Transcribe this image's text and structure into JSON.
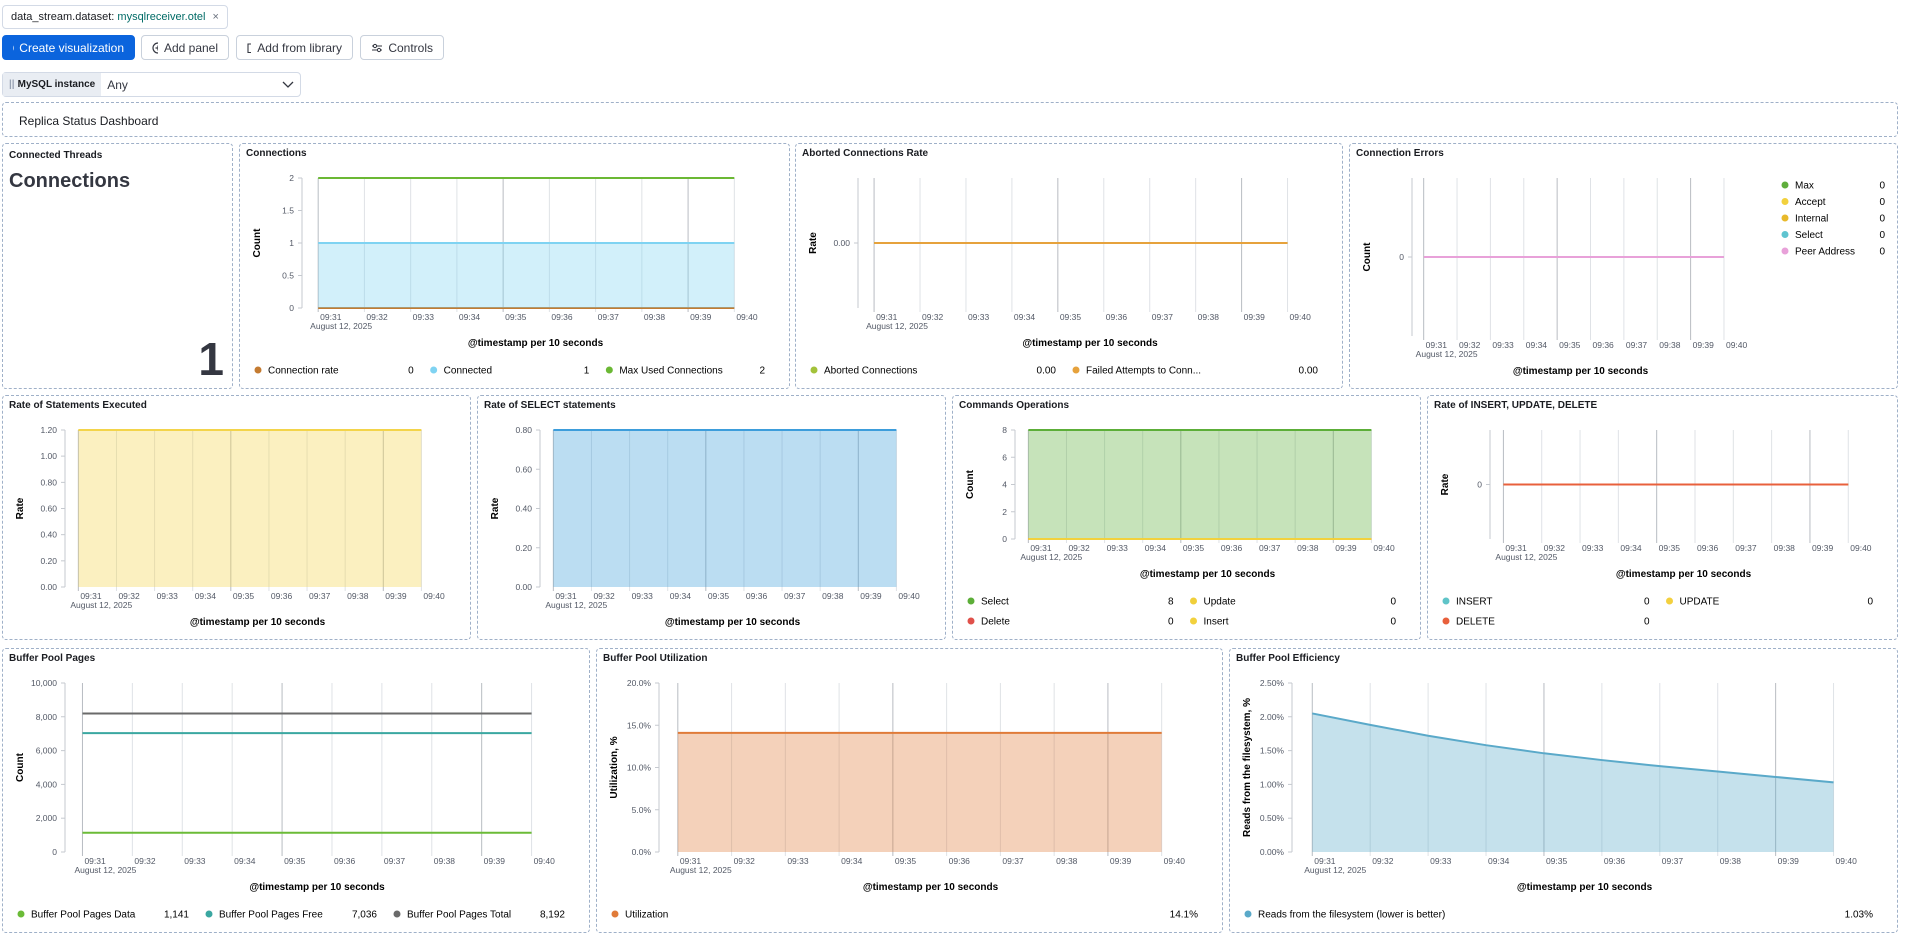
{
  "toolbar": {
    "filter_field": "data_stream.dataset:",
    "filter_value": "mysqlreceiver.otel",
    "buttons": [
      "Create visualization",
      "Add panel",
      "Add from library",
      "Controls"
    ]
  },
  "control": {
    "label": "MySQL instance",
    "value": "Any"
  },
  "dashboard_title": "Replica Status Dashboard",
  "metric_panel": {
    "title": "Connected Threads",
    "heading": "Connections",
    "value": "1"
  },
  "chart_data": [
    {
      "type": "line",
      "title": "Connections",
      "y_label": "Count",
      "x_label": "@timestamp per 10 seconds",
      "x_sublabel": "August 12, 2025",
      "x": [
        "09:31",
        "09:32",
        "09:33",
        "09:34",
        "09:35",
        "09:36",
        "09:37",
        "09:38",
        "09:39",
        "09:40"
      ],
      "ylim": [
        0,
        2
      ],
      "yticks": [
        0,
        0.5,
        1,
        1.5,
        2
      ],
      "legend": "bottom",
      "series": [
        {
          "name": "Connection rate",
          "color": "#c47b31",
          "values": [
            0,
            0,
            0,
            0,
            0,
            0,
            0,
            0,
            0,
            0
          ],
          "legend_value": "0"
        },
        {
          "name": "Connected",
          "color": "#7fd3f2",
          "area": true,
          "values": [
            1,
            1,
            1,
            1,
            1,
            1,
            1,
            1,
            1,
            1
          ],
          "legend_value": "1"
        },
        {
          "name": "Max Used Connections",
          "color": "#6bb834",
          "values": [
            2,
            2,
            2,
            2,
            2,
            2,
            2,
            2,
            2,
            2
          ],
          "legend_value": "2"
        }
      ]
    },
    {
      "type": "line",
      "title": "Aborted Connections Rate",
      "y_label": "Rate",
      "x_label": "@timestamp per 10 seconds",
      "x_sublabel": "August 12, 2025",
      "x": [
        "09:31",
        "09:32",
        "09:33",
        "09:34",
        "09:35",
        "09:36",
        "09:37",
        "09:38",
        "09:39",
        "09:40"
      ],
      "ylim": [
        -1,
        1
      ],
      "yticks": [
        {
          "value": 0,
          "label": "0.00"
        }
      ],
      "legend": "bottom",
      "series": [
        {
          "name": "Aborted Connections",
          "color": "#a3c23a",
          "values": [
            0,
            0,
            0,
            0,
            0,
            0,
            0,
            0,
            0,
            0
          ],
          "legend_value": "0.00"
        },
        {
          "name": "Failed Attempts to Conn...",
          "color": "#e6a23c",
          "values": [
            0,
            0,
            0,
            0,
            0,
            0,
            0,
            0,
            0,
            0
          ],
          "legend_value": "0.00"
        }
      ]
    },
    {
      "type": "line",
      "title": "Connection Errors",
      "y_label": "Count",
      "x_label": "@timestamp per 10 seconds",
      "x_sublabel": "August 12, 2025",
      "x": [
        "09:31",
        "09:32",
        "09:33",
        "09:34",
        "09:35",
        "09:36",
        "09:37",
        "09:38",
        "09:39",
        "09:40"
      ],
      "ylim": [
        -1,
        1
      ],
      "yticks": [
        0
      ],
      "legend": "right",
      "series": [
        {
          "name": "Max",
          "color": "#5fae3c",
          "values": [
            0,
            0,
            0,
            0,
            0,
            0,
            0,
            0,
            0,
            0
          ],
          "legend_value": "0"
        },
        {
          "name": "Accept",
          "color": "#f2d13d",
          "values": [
            0,
            0,
            0,
            0,
            0,
            0,
            0,
            0,
            0,
            0
          ],
          "legend_value": "0"
        },
        {
          "name": "Internal",
          "color": "#e8b92b",
          "values": [
            0,
            0,
            0,
            0,
            0,
            0,
            0,
            0,
            0,
            0
          ],
          "legend_value": "0"
        },
        {
          "name": "Select",
          "color": "#5fc4d0",
          "values": [
            0,
            0,
            0,
            0,
            0,
            0,
            0,
            0,
            0,
            0
          ],
          "legend_value": "0"
        },
        {
          "name": "Peer Address",
          "color": "#e8a1d9",
          "values": [
            0,
            0,
            0,
            0,
            0,
            0,
            0,
            0,
            0,
            0
          ],
          "legend_value": "0"
        }
      ]
    },
    {
      "type": "line",
      "title": "Rate of Statements Executed",
      "y_label": "Rate",
      "x_label": "@timestamp per 10 seconds",
      "x_sublabel": "August 12, 2025",
      "x": [
        "09:31",
        "09:32",
        "09:33",
        "09:34",
        "09:35",
        "09:36",
        "09:37",
        "09:38",
        "09:39",
        "09:40"
      ],
      "ylim": [
        0,
        1.2
      ],
      "yticks": [
        {
          "value": 0,
          "label": "0.00"
        },
        {
          "value": 0.2,
          "label": "0.20"
        },
        {
          "value": 0.4,
          "label": "0.40"
        },
        {
          "value": 0.6,
          "label": "0.60"
        },
        {
          "value": 0.8,
          "label": "0.80"
        },
        {
          "value": 1,
          "label": "1.00"
        },
        {
          "value": 1.2,
          "label": "1.20"
        }
      ],
      "series": [
        {
          "color": "#f3d44a",
          "area": true,
          "values": [
            1.2,
            1.2,
            1.2,
            1.2,
            1.2,
            1.2,
            1.2,
            1.2,
            1.2,
            1.2
          ]
        }
      ]
    },
    {
      "type": "line",
      "title": "Rate of SELECT statements",
      "y_label": "Rate",
      "x_label": "@timestamp per 10 seconds",
      "x_sublabel": "August 12, 2025",
      "x": [
        "09:31",
        "09:32",
        "09:33",
        "09:34",
        "09:35",
        "09:36",
        "09:37",
        "09:38",
        "09:39",
        "09:40"
      ],
      "ylim": [
        0,
        0.8
      ],
      "yticks": [
        {
          "value": 0,
          "label": "0.00"
        },
        {
          "value": 0.2,
          "label": "0.20"
        },
        {
          "value": 0.4,
          "label": "0.40"
        },
        {
          "value": 0.6,
          "label": "0.60"
        },
        {
          "value": 0.8,
          "label": "0.80"
        }
      ],
      "series": [
        {
          "color": "#3d9ddb",
          "area": true,
          "values": [
            0.8,
            0.8,
            0.8,
            0.8,
            0.8,
            0.8,
            0.8,
            0.8,
            0.8,
            0.8
          ]
        }
      ]
    },
    {
      "type": "line",
      "title": "Commands Operations",
      "y_label": "Count",
      "x_label": "@timestamp per 10 seconds",
      "x_sublabel": "August 12, 2025",
      "x": [
        "09:31",
        "09:32",
        "09:33",
        "09:34",
        "09:35",
        "09:36",
        "09:37",
        "09:38",
        "09:39",
        "09:40"
      ],
      "ylim": [
        0,
        8
      ],
      "yticks": [
        0,
        2,
        4,
        6,
        8
      ],
      "legend": "bottom",
      "series": [
        {
          "name": "Select",
          "color": "#5cae38",
          "area": true,
          "values": [
            8,
            8,
            8,
            8,
            8,
            8,
            8,
            8,
            8,
            8
          ],
          "legend_value": "8"
        },
        {
          "name": "Update",
          "color": "#f0cf3a",
          "values": [
            0,
            0,
            0,
            0,
            0,
            0,
            0,
            0,
            0,
            0
          ],
          "legend_value": "0"
        },
        {
          "name": "Delete",
          "color": "#e0514a",
          "values": [
            0,
            0,
            0,
            0,
            0,
            0,
            0,
            0,
            0,
            0
          ],
          "legend_value": "0"
        },
        {
          "name": "Insert",
          "color": "#f2d13d",
          "values": [
            0,
            0,
            0,
            0,
            0,
            0,
            0,
            0,
            0,
            0
          ],
          "legend_value": "0"
        }
      ]
    },
    {
      "type": "line",
      "title": "Rate of INSERT, UPDATE, DELETE",
      "y_label": "Rate",
      "x_label": "@timestamp per 10 seconds",
      "x_sublabel": "August 12, 2025",
      "x": [
        "09:31",
        "09:32",
        "09:33",
        "09:34",
        "09:35",
        "09:36",
        "09:37",
        "09:38",
        "09:39",
        "09:40"
      ],
      "ylim": [
        -1,
        1
      ],
      "yticks": [
        0
      ],
      "legend": "bottom",
      "series": [
        {
          "name": "INSERT",
          "color": "#5fc4c8",
          "values": [
            0,
            0,
            0,
            0,
            0,
            0,
            0,
            0,
            0,
            0
          ],
          "legend_value": "0"
        },
        {
          "name": "UPDATE",
          "color": "#f3d03f",
          "values": [
            0,
            0,
            0,
            0,
            0,
            0,
            0,
            0,
            0,
            0
          ],
          "legend_value": "0"
        },
        {
          "name": "DELETE",
          "color": "#e8603c",
          "values": [
            0,
            0,
            0,
            0,
            0,
            0,
            0,
            0,
            0,
            0
          ],
          "legend_value": "0"
        }
      ]
    },
    {
      "type": "line",
      "title": "Buffer Pool Pages",
      "y_label": "Count",
      "x_label": "@timestamp per 10 seconds",
      "x_sublabel": "August 12, 2025",
      "x": [
        "09:31",
        "09:32",
        "09:33",
        "09:34",
        "09:35",
        "09:36",
        "09:37",
        "09:38",
        "09:39",
        "09:40"
      ],
      "ylim": [
        0,
        10000
      ],
      "yticks": [
        0,
        {
          "value": 2000,
          "label": "2,000"
        },
        {
          "value": 4000,
          "label": "4,000"
        },
        {
          "value": 6000,
          "label": "6,000"
        },
        {
          "value": 8000,
          "label": "8,000"
        },
        {
          "value": 10000,
          "label": "10,000"
        }
      ],
      "legend": "bottom",
      "series": [
        {
          "name": "Buffer Pool Pages Data",
          "color": "#6bbb37",
          "values": [
            1141,
            1141,
            1141,
            1141,
            1141,
            1141,
            1141,
            1141,
            1141,
            1141
          ],
          "legend_value": "1,141"
        },
        {
          "name": "Buffer Pool Pages Free",
          "color": "#3aa7a1",
          "values": [
            7036,
            7036,
            7036,
            7036,
            7036,
            7036,
            7036,
            7036,
            7036,
            7036
          ],
          "legend_value": "7,036"
        },
        {
          "name": "Buffer Pool Pages Total",
          "color": "#6a6a6a",
          "values": [
            8192,
            8192,
            8192,
            8192,
            8192,
            8192,
            8192,
            8192,
            8192,
            8192
          ],
          "legend_value": "8,192"
        }
      ]
    },
    {
      "type": "line",
      "title": "Buffer Pool Utilization",
      "y_label": "Utilization, %",
      "x_label": "@timestamp per 10 seconds",
      "x_sublabel": "August 12, 2025",
      "x": [
        "09:31",
        "09:32",
        "09:33",
        "09:34",
        "09:35",
        "09:36",
        "09:37",
        "09:38",
        "09:39",
        "09:40"
      ],
      "ylim": [
        0,
        20
      ],
      "yticks": [
        {
          "value": 0,
          "label": "0.0%"
        },
        {
          "value": 5,
          "label": "5.0%"
        },
        {
          "value": 10,
          "label": "10.0%"
        },
        {
          "value": 15,
          "label": "15.0%"
        },
        {
          "value": 20,
          "label": "20.0%"
        }
      ],
      "legend": "bottom",
      "series": [
        {
          "name": "Utilization",
          "color": "#e07b39",
          "area": true,
          "values": [
            14.1,
            14.1,
            14.1,
            14.1,
            14.1,
            14.1,
            14.1,
            14.1,
            14.1,
            14.1
          ],
          "legend_value": "14.1%"
        }
      ]
    },
    {
      "type": "line",
      "title": "Buffer Pool Efficiency",
      "y_label": "Reads from the filesystem, %",
      "x_label": "@timestamp per 10 seconds",
      "x_sublabel": "August 12, 2025",
      "x": [
        "09:31",
        "09:32",
        "09:33",
        "09:34",
        "09:35",
        "09:36",
        "09:37",
        "09:38",
        "09:39",
        "09:40"
      ],
      "ylim": [
        0,
        2.5
      ],
      "yticks": [
        {
          "value": 0,
          "label": "0.00%"
        },
        {
          "value": 0.5,
          "label": "0.50%"
        },
        {
          "value": 1,
          "label": "1.00%"
        },
        {
          "value": 1.5,
          "label": "1.50%"
        },
        {
          "value": 2,
          "label": "2.00%"
        },
        {
          "value": 2.5,
          "label": "2.50%"
        }
      ],
      "legend": "bottom",
      "series": [
        {
          "name": "Reads from the filesystem (lower is better)",
          "color": "#5aa9c9",
          "area": true,
          "values": [
            2.05,
            1.88,
            1.72,
            1.58,
            1.46,
            1.36,
            1.27,
            1.19,
            1.11,
            1.03
          ],
          "legend_value": "1.03%"
        }
      ]
    }
  ]
}
